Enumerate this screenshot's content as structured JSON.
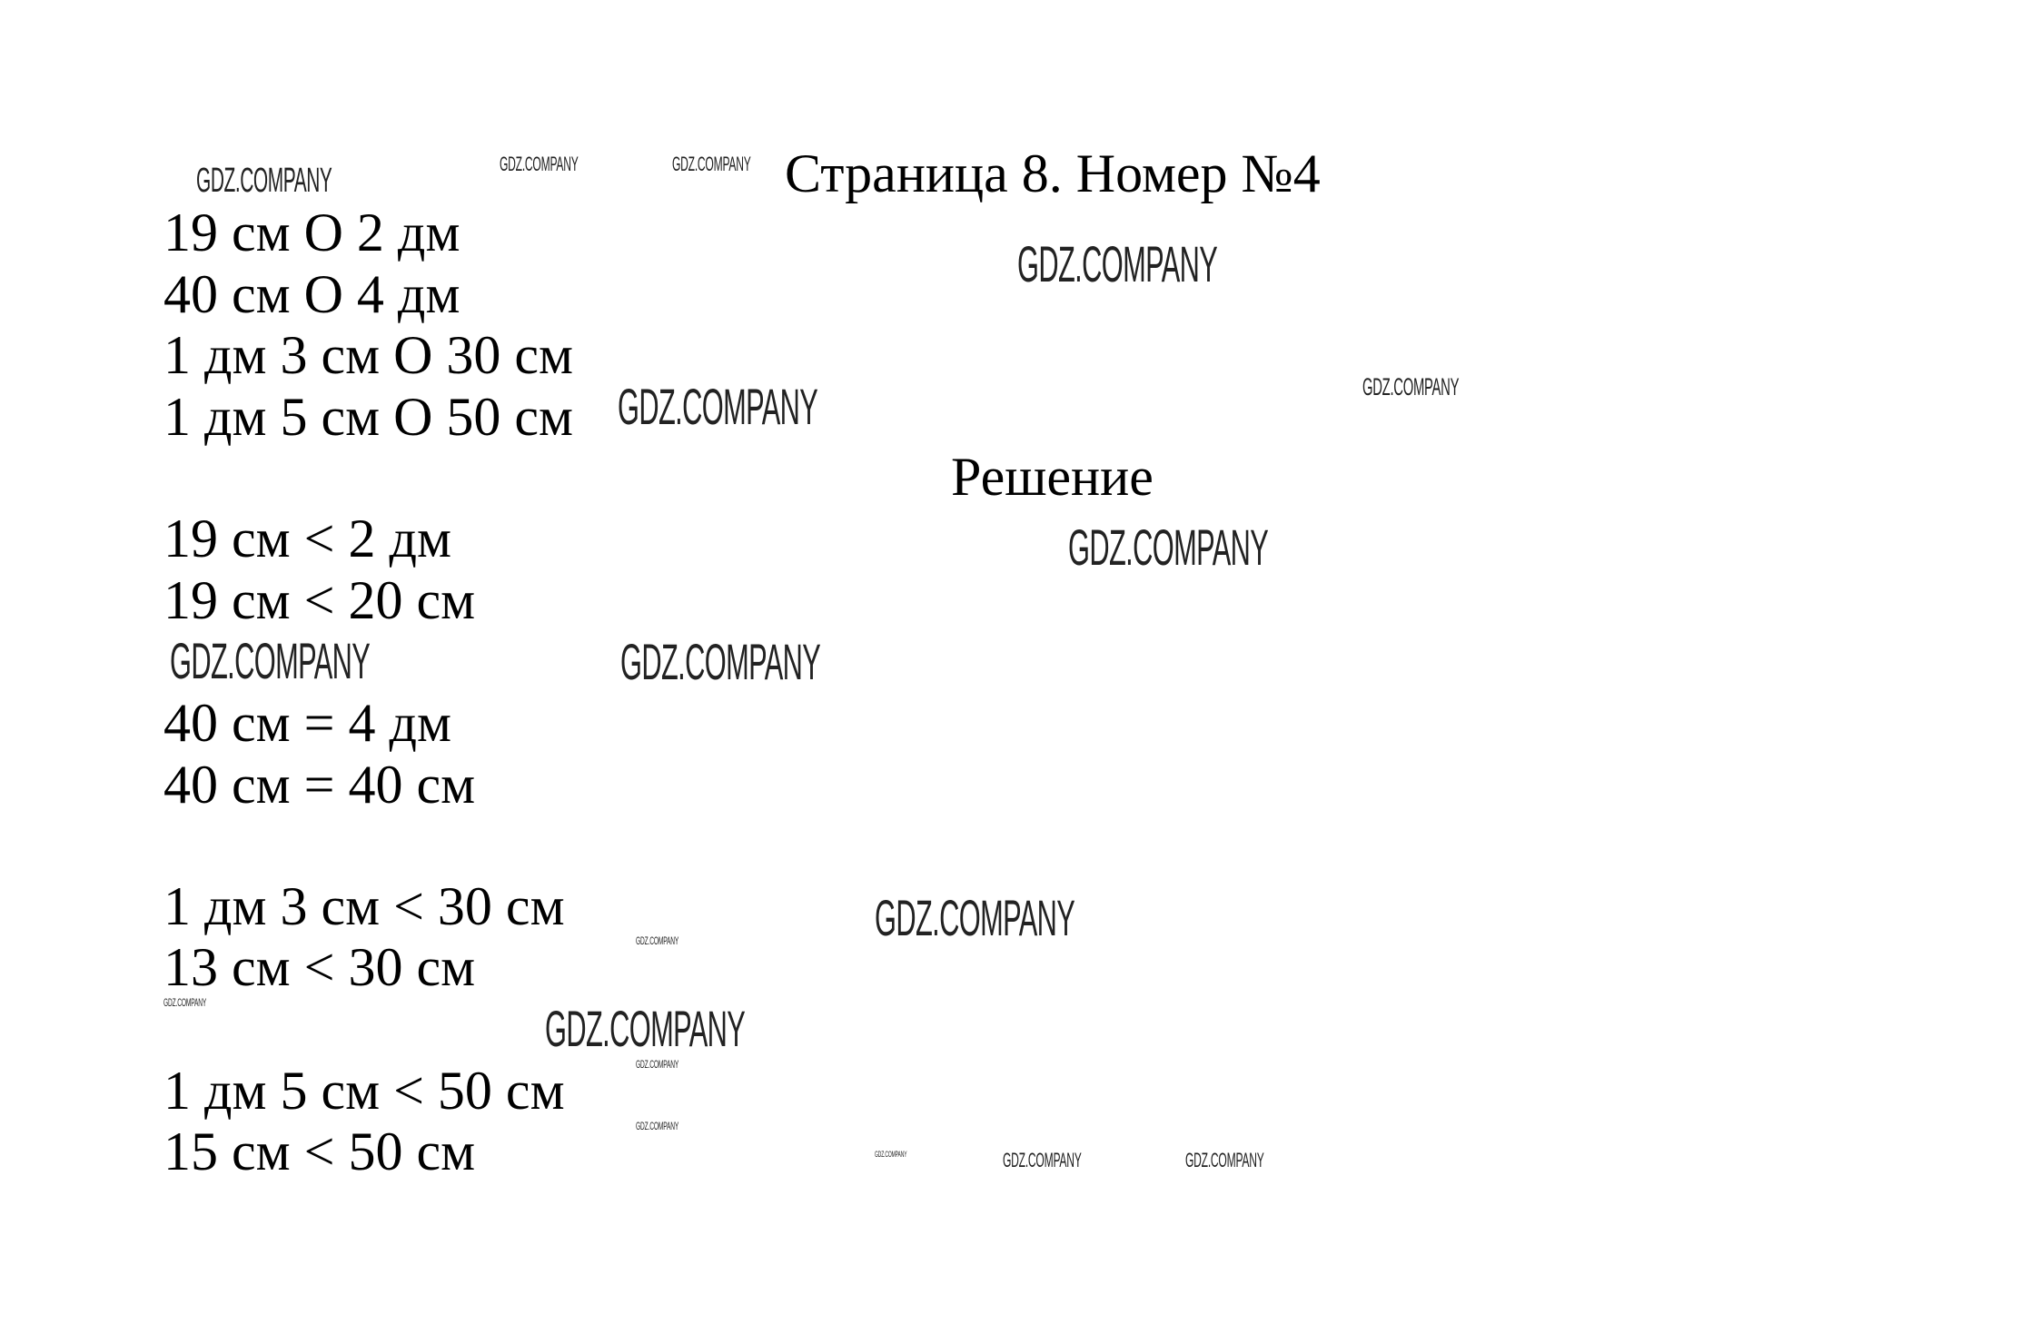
{
  "title": "Страница 8. Номер №4",
  "task_lines": [
    "19 см О 2 дм",
    "40 см О 4 дм",
    "1 дм 3 см О 30 см",
    "1 дм 5 см О 50 см"
  ],
  "solution_heading": "Решение",
  "solution_lines": [
    "19 см < 2 дм",
    "19 см < 20 см",
    "40 см = 4 дм",
    "40 см = 40 см",
    "1 дм 3 см < 30 см",
    "13 см < 30 см",
    "1 дм 5 см < 50 см",
    "15 см < 50 см"
  ],
  "watermark": "GDZ.COMPANY"
}
